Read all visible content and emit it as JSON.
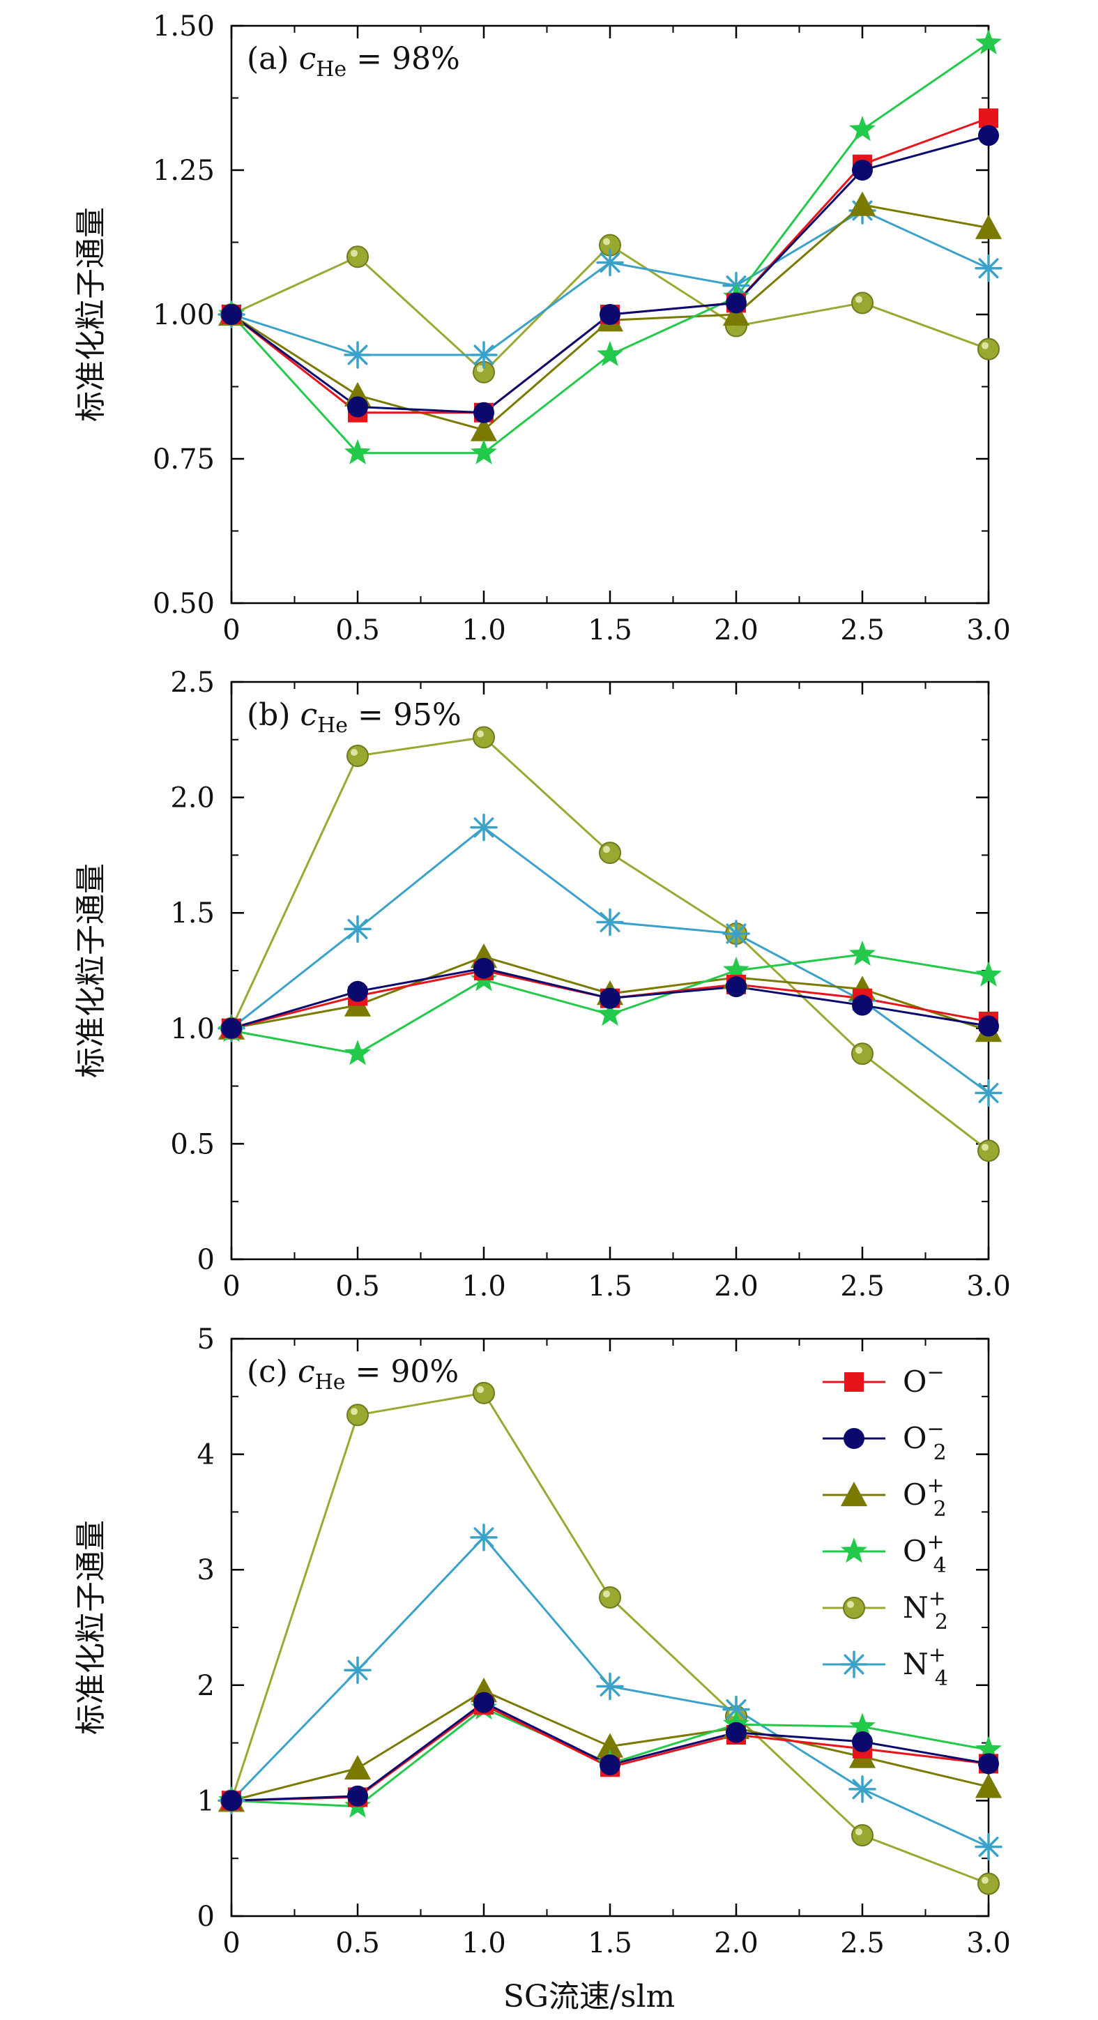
{
  "figure": {
    "xlabel": "SG流速/slm",
    "ylabel": "标准化粒子通量"
  },
  "legend": [
    {
      "key": "Om",
      "base": "O",
      "sub": "",
      "sup": "−"
    },
    {
      "key": "O2m",
      "base": "O",
      "sub": "2",
      "sup": "−"
    },
    {
      "key": "O2p",
      "base": "O",
      "sub": "2",
      "sup": "+"
    },
    {
      "key": "O4p",
      "base": "O",
      "sub": "4",
      "sup": "+"
    },
    {
      "key": "N2p",
      "base": "N",
      "sub": "2",
      "sup": "+"
    },
    {
      "key": "N4p",
      "base": "N",
      "sub": "4",
      "sup": "+"
    }
  ],
  "series_style": {
    "Om": {
      "color": "#e8141c",
      "marker": "square"
    },
    "O2m": {
      "color": "#0a0a6e",
      "marker": "circle"
    },
    "O2p": {
      "color": "#7a7a00",
      "marker": "triangle"
    },
    "O4p": {
      "color": "#22c94a",
      "marker": "star"
    },
    "N2p": {
      "color": "#9aa832",
      "marker": "ball"
    },
    "N4p": {
      "color": "#3aa2c8",
      "marker": "asterisk"
    }
  },
  "chart_data": [
    {
      "type": "line",
      "panel_label": "(a)",
      "annotation": {
        "var": "c",
        "sub": "He",
        "text": " = 98%"
      },
      "x": [
        0,
        0.5,
        1.0,
        1.5,
        2.0,
        2.5,
        3.0
      ],
      "xticks": [
        "0",
        "0.5",
        "1.0",
        "1.5",
        "2.0",
        "2.5",
        "3.0"
      ],
      "yticks": [
        "0.50",
        "0.75",
        "1.00",
        "1.25",
        "1.50"
      ],
      "ytick_values": [
        0.5,
        0.75,
        1.0,
        1.25,
        1.5
      ],
      "xlim": [
        0,
        3.0
      ],
      "ylim": [
        0.5,
        1.5
      ],
      "series": [
        {
          "key": "Om",
          "values": [
            1.0,
            0.83,
            0.83,
            1.0,
            1.02,
            1.26,
            1.34
          ]
        },
        {
          "key": "O2m",
          "values": [
            1.0,
            0.84,
            0.83,
            1.0,
            1.02,
            1.25,
            1.31
          ]
        },
        {
          "key": "O2p",
          "values": [
            1.0,
            0.86,
            0.8,
            0.99,
            1.0,
            1.19,
            1.15
          ]
        },
        {
          "key": "O4p",
          "values": [
            1.0,
            0.76,
            0.76,
            0.93,
            1.03,
            1.32,
            1.47
          ]
        },
        {
          "key": "N2p",
          "values": [
            1.0,
            1.1,
            0.9,
            1.12,
            0.98,
            1.02,
            0.94
          ]
        },
        {
          "key": "N4p",
          "values": [
            1.0,
            0.93,
            0.93,
            1.09,
            1.05,
            1.18,
            1.08
          ]
        }
      ]
    },
    {
      "type": "line",
      "panel_label": "(b)",
      "annotation": {
        "var": "c",
        "sub": "He",
        "text": " = 95%"
      },
      "x": [
        0,
        0.5,
        1.0,
        1.5,
        2.0,
        2.5,
        3.0
      ],
      "xticks": [
        "0",
        "0.5",
        "1.0",
        "1.5",
        "2.0",
        "2.5",
        "3.0"
      ],
      "yticks": [
        "0",
        "0.5",
        "1.0",
        "1.5",
        "2.0",
        "2.5"
      ],
      "ytick_values": [
        0,
        0.5,
        1.0,
        1.5,
        2.0,
        2.5
      ],
      "xlim": [
        0,
        3.0
      ],
      "ylim": [
        0,
        2.5
      ],
      "series": [
        {
          "key": "Om",
          "values": [
            1.0,
            1.14,
            1.25,
            1.13,
            1.19,
            1.13,
            1.03
          ]
        },
        {
          "key": "O2m",
          "values": [
            1.0,
            1.16,
            1.26,
            1.13,
            1.18,
            1.1,
            1.01
          ]
        },
        {
          "key": "O2p",
          "values": [
            1.0,
            1.1,
            1.31,
            1.15,
            1.22,
            1.17,
            0.99
          ]
        },
        {
          "key": "O4p",
          "values": [
            0.99,
            0.89,
            1.21,
            1.06,
            1.25,
            1.32,
            1.23
          ]
        },
        {
          "key": "N2p",
          "values": [
            1.0,
            2.18,
            2.26,
            1.76,
            1.41,
            0.89,
            0.47
          ]
        },
        {
          "key": "N4p",
          "values": [
            1.0,
            1.43,
            1.87,
            1.46,
            1.41,
            1.12,
            0.72
          ]
        }
      ]
    },
    {
      "type": "line",
      "panel_label": "(c)",
      "annotation": {
        "var": "c",
        "sub": "He",
        "text": " = 90%"
      },
      "x": [
        0,
        0.5,
        1.0,
        1.5,
        2.0,
        2.5,
        3.0
      ],
      "xticks": [
        "0",
        "0.5",
        "1.0",
        "1.5",
        "2.0",
        "2.5",
        "3.0"
      ],
      "yticks": [
        "0",
        "1",
        "2",
        "3",
        "4",
        "5"
      ],
      "ytick_values": [
        0,
        1,
        2,
        3,
        4,
        5
      ],
      "xlim": [
        0,
        3.0
      ],
      "ylim": [
        0,
        5
      ],
      "series": [
        {
          "key": "Om",
          "values": [
            1.0,
            1.03,
            1.83,
            1.29,
            1.57,
            1.45,
            1.32
          ]
        },
        {
          "key": "O2m",
          "values": [
            1.0,
            1.04,
            1.85,
            1.31,
            1.59,
            1.51,
            1.32
          ]
        },
        {
          "key": "O2p",
          "values": [
            1.0,
            1.28,
            1.95,
            1.47,
            1.63,
            1.38,
            1.12
          ]
        },
        {
          "key": "O4p",
          "values": [
            1.0,
            0.95,
            1.8,
            1.32,
            1.66,
            1.64,
            1.44
          ]
        },
        {
          "key": "N2p",
          "values": [
            1.0,
            4.34,
            4.53,
            2.76,
            1.73,
            0.7,
            0.28
          ]
        },
        {
          "key": "N4p",
          "values": [
            1.0,
            2.13,
            3.28,
            1.99,
            1.79,
            1.1,
            0.6
          ]
        }
      ]
    }
  ]
}
